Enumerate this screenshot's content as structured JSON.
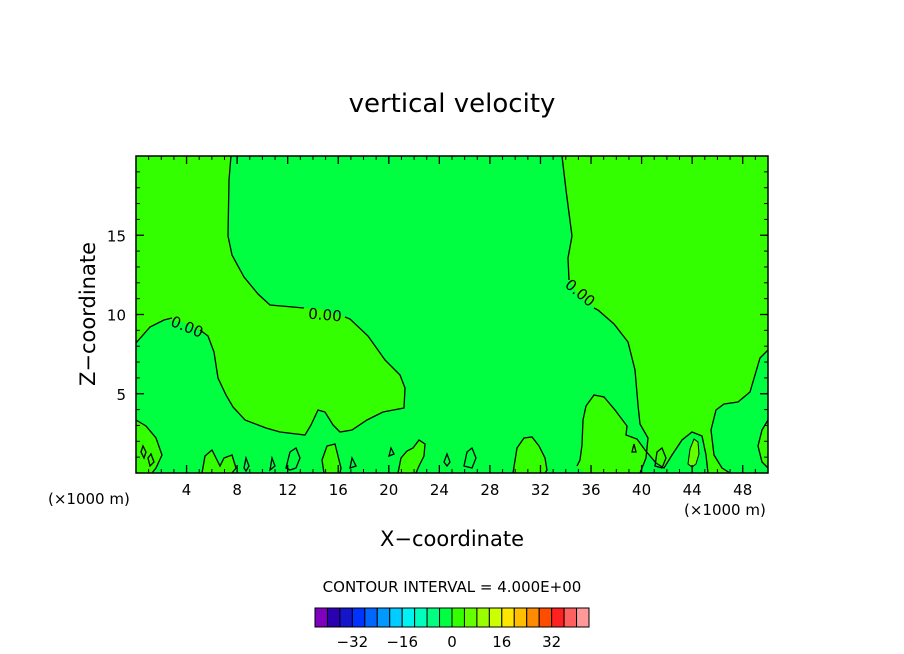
{
  "chart_data": {
    "type": "heatmap",
    "title": "vertical velocity",
    "xlabel": "X−coordinate",
    "ylabel": "Z−coordinate",
    "x_unit": "(×1000 m)",
    "z_unit": "(×1000 m)",
    "xlim": [
      0,
      50
    ],
    "ylim": [
      0,
      20
    ],
    "x_ticks": [
      4,
      8,
      12,
      16,
      20,
      24,
      28,
      32,
      36,
      40,
      44,
      48
    ],
    "y_ticks": [
      5,
      10,
      15
    ],
    "contour_labels": [
      "0.00",
      "0.00",
      "0.00"
    ],
    "contour_interval": "CONTOUR INTERVAL = 4.000E+00",
    "colorbar": {
      "tick_values": [
        -32,
        -16,
        0,
        16,
        32
      ],
      "tick_labels": [
        "−32",
        "−16",
        "0",
        "16",
        "32"
      ],
      "colors": [
        "#7f00bf",
        "#2a00b0",
        "#1515cc",
        "#0033ff",
        "#0066ff",
        "#0099ff",
        "#00ccff",
        "#00f2f2",
        "#00ffbf",
        "#00ff80",
        "#00ff40",
        "#33ff00",
        "#66ff00",
        "#99ff00",
        "#ccff00",
        "#ffe600",
        "#ffbf00",
        "#ff8c00",
        "#ff4d00",
        "#ff2020",
        "#ff6060",
        "#ff9999"
      ]
    },
    "field_colors": {
      "negative_small": "#00ff40",
      "positive_small": "#33ff00",
      "positive_4_8": "#66ff00"
    }
  }
}
